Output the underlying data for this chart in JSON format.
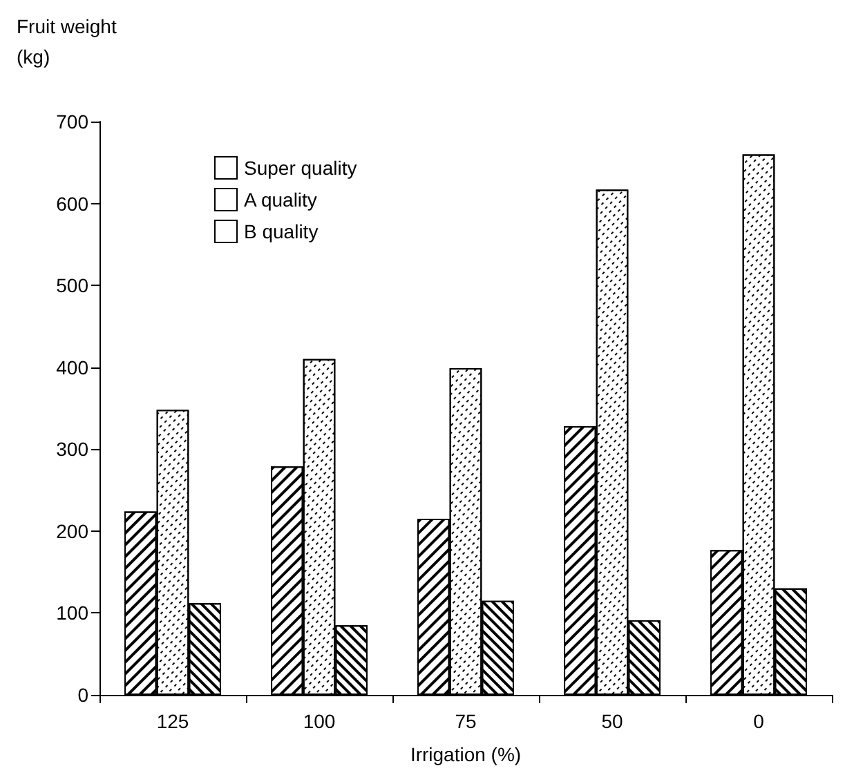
{
  "chart_data": {
    "type": "bar",
    "xlabel": "Irrigation (%)",
    "ylabel": "Fruit weight\n(kg)",
    "categories": [
      "125",
      "100",
      "75",
      "50",
      "0"
    ],
    "series": [
      {
        "name": "Super quality",
        "color": "#ffffff",
        "values": [
          224,
          279,
          215,
          328,
          177
        ]
      },
      {
        "name": "A quality",
        "color": "#ffffff",
        "values": [
          348,
          410,
          399,
          617,
          660
        ]
      },
      {
        "name": "B quality",
        "color": "#ffffff",
        "values": [
          112,
          85,
          115,
          91,
          130
        ]
      }
    ],
    "ylim": [
      0,
      700
    ],
    "yticks": [
      0,
      100,
      200,
      300,
      400,
      500,
      600,
      700
    ],
    "grid": false,
    "legend": "top left"
  }
}
